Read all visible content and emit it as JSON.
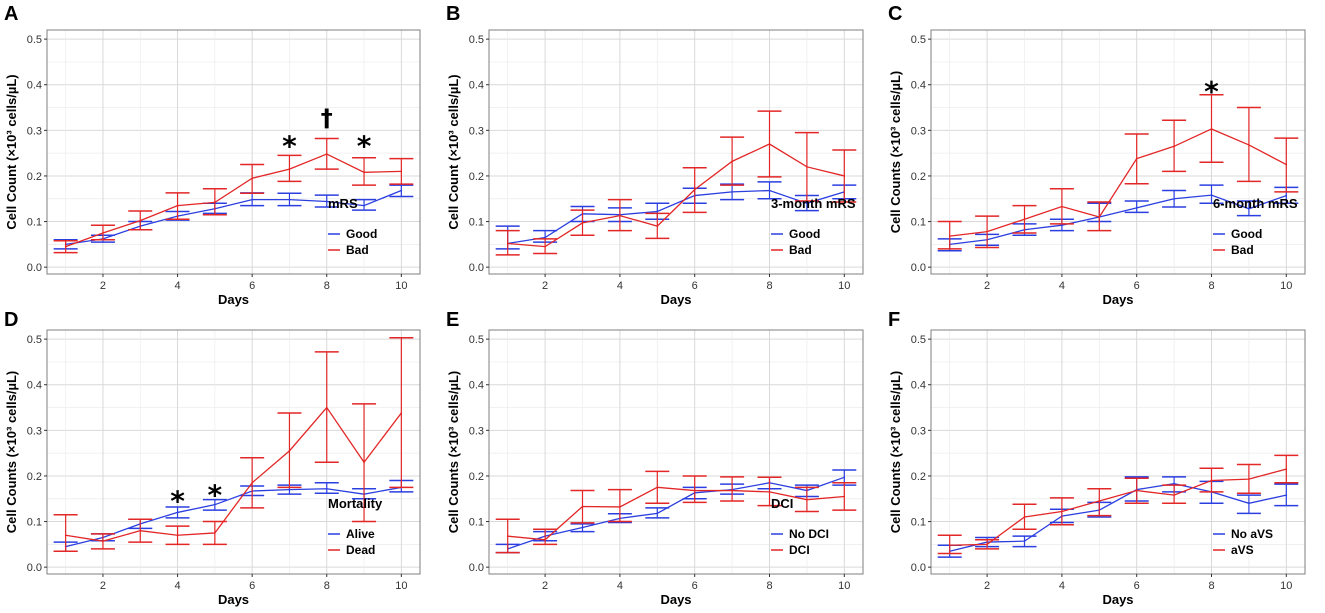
{
  "chart_data": [
    {
      "panel": "A",
      "type": "line",
      "xlabel": "Days",
      "ylabel": "Cell Count (×10³ cells/µL)",
      "x": [
        1,
        2,
        3,
        4,
        5,
        6,
        7,
        8,
        9,
        10
      ],
      "xticks": [
        2,
        4,
        6,
        8,
        10
      ],
      "yticks": [
        0.0,
        0.1,
        0.2,
        0.3,
        0.4,
        0.5
      ],
      "ytick_labels": [
        "0.0",
        "0.1",
        "0.2",
        "0.3",
        "0.4",
        "0.5"
      ],
      "xlim": [
        0.5,
        10.5
      ],
      "ylim": [
        -0.015,
        0.52
      ],
      "legend_title": "mRS",
      "legend_position": "bottom-right",
      "series": [
        {
          "name": "Good",
          "color": "#2b3fe0",
          "mean": [
            0.05,
            0.062,
            0.09,
            0.112,
            0.128,
            0.148,
            0.148,
            0.144,
            0.135,
            0.168
          ],
          "lower": [
            0.04,
            0.055,
            0.082,
            0.103,
            0.118,
            0.135,
            0.135,
            0.132,
            0.125,
            0.155
          ],
          "upper": [
            0.06,
            0.07,
            0.1,
            0.122,
            0.14,
            0.163,
            0.162,
            0.158,
            0.148,
            0.18
          ]
        },
        {
          "name": "Bad",
          "color": "#e32626",
          "mean": [
            0.045,
            0.075,
            0.102,
            0.135,
            0.142,
            0.195,
            0.215,
            0.248,
            0.208,
            0.21
          ],
          "lower": [
            0.032,
            0.06,
            0.082,
            0.105,
            0.115,
            0.162,
            0.188,
            0.215,
            0.18,
            0.182
          ],
          "upper": [
            0.058,
            0.092,
            0.123,
            0.163,
            0.172,
            0.225,
            0.245,
            0.282,
            0.24,
            0.238
          ]
        }
      ],
      "annotations": [
        {
          "x": 7,
          "y": 0.275,
          "text": "*"
        },
        {
          "x": 8,
          "y": 0.318,
          "text": "†"
        },
        {
          "x": 9,
          "y": 0.275,
          "text": "*"
        }
      ]
    },
    {
      "panel": "B",
      "type": "line",
      "xlabel": "Days",
      "ylabel": "Cell Count (×10³ cells/µL)",
      "x": [
        1,
        2,
        3,
        4,
        5,
        6,
        7,
        8,
        9,
        10
      ],
      "xticks": [
        2,
        4,
        6,
        8,
        10
      ],
      "yticks": [
        0.0,
        0.1,
        0.2,
        0.3,
        0.4,
        0.5
      ],
      "ytick_labels": [
        "0.0",
        "0.1",
        "0.2",
        "0.3",
        "0.4",
        "0.5"
      ],
      "xlim": [
        0.5,
        10.5
      ],
      "ylim": [
        -0.015,
        0.52
      ],
      "legend_title": "3-month mRS",
      "legend_position": "bottom-right",
      "series": [
        {
          "name": "Good",
          "color": "#2b3fe0",
          "mean": [
            0.052,
            0.065,
            0.117,
            0.115,
            0.122,
            0.157,
            0.165,
            0.168,
            0.14,
            0.165
          ],
          "lower": [
            0.04,
            0.055,
            0.1,
            0.1,
            0.105,
            0.14,
            0.148,
            0.15,
            0.124,
            0.15
          ],
          "upper": [
            0.09,
            0.08,
            0.133,
            0.13,
            0.14,
            0.173,
            0.182,
            0.187,
            0.157,
            0.18
          ]
        },
        {
          "name": "Bad",
          "color": "#e32626",
          "mean": [
            0.052,
            0.045,
            0.097,
            0.113,
            0.09,
            0.17,
            0.232,
            0.27,
            0.22,
            0.2
          ],
          "lower": [
            0.027,
            0.03,
            0.07,
            0.08,
            0.063,
            0.12,
            0.18,
            0.198,
            0.145,
            0.143
          ],
          "upper": [
            0.08,
            0.062,
            0.125,
            0.148,
            0.118,
            0.218,
            0.285,
            0.342,
            0.295,
            0.257
          ]
        }
      ],
      "annotations": []
    },
    {
      "panel": "C",
      "type": "line",
      "xlabel": "Days",
      "ylabel": "Cell Counts (×10³ cells/µL)",
      "x": [
        1,
        2,
        3,
        4,
        5,
        6,
        7,
        8,
        9,
        10
      ],
      "xticks": [
        2,
        4,
        6,
        8,
        10
      ],
      "yticks": [
        0.0,
        0.1,
        0.2,
        0.3,
        0.4,
        0.5
      ],
      "ytick_labels": [
        "0.0",
        "0.1",
        "0.2",
        "0.3",
        "0.4",
        "0.5"
      ],
      "xlim": [
        0.5,
        10.5
      ],
      "ylim": [
        -0.015,
        0.52
      ],
      "legend_title": "6-month mRS",
      "legend_position": "bottom-right",
      "series": [
        {
          "name": "Good",
          "color": "#2b3fe0",
          "mean": [
            0.05,
            0.06,
            0.082,
            0.092,
            0.11,
            0.13,
            0.15,
            0.158,
            0.128,
            0.157
          ],
          "lower": [
            0.036,
            0.048,
            0.07,
            0.08,
            0.1,
            0.12,
            0.132,
            0.14,
            0.113,
            0.14
          ],
          "upper": [
            0.062,
            0.072,
            0.095,
            0.105,
            0.14,
            0.145,
            0.168,
            0.18,
            0.145,
            0.175
          ]
        },
        {
          "name": "Bad",
          "color": "#e32626",
          "mean": [
            0.068,
            0.078,
            0.105,
            0.133,
            0.11,
            0.238,
            0.265,
            0.303,
            0.268,
            0.225
          ],
          "lower": [
            0.04,
            0.043,
            0.075,
            0.095,
            0.08,
            0.183,
            0.21,
            0.23,
            0.188,
            0.165
          ],
          "upper": [
            0.1,
            0.112,
            0.135,
            0.172,
            0.143,
            0.292,
            0.322,
            0.378,
            0.35,
            0.283
          ]
        }
      ],
      "annotations": [
        {
          "x": 8,
          "y": 0.395,
          "text": "*"
        }
      ]
    },
    {
      "panel": "D",
      "type": "line",
      "xlabel": "Days",
      "ylabel": "Cell Counts (×10³ cells/µL)",
      "x": [
        1,
        2,
        3,
        4,
        5,
        6,
        7,
        8,
        9,
        10
      ],
      "xticks": [
        2,
        4,
        6,
        8,
        10
      ],
      "yticks": [
        0.0,
        0.1,
        0.2,
        0.3,
        0.4,
        0.5
      ],
      "ytick_labels": [
        "0.0",
        "0.1",
        "0.2",
        "0.3",
        "0.4",
        "0.5"
      ],
      "xlim": [
        0.5,
        10.5
      ],
      "ylim": [
        -0.015,
        0.52
      ],
      "legend_title": "Mortality",
      "legend_position": "bottom-right",
      "series": [
        {
          "name": "Alive",
          "color": "#2b3fe0",
          "mean": [
            0.045,
            0.065,
            0.095,
            0.12,
            0.137,
            0.167,
            0.17,
            0.172,
            0.16,
            0.175
          ],
          "lower": [
            0.035,
            0.058,
            0.085,
            0.108,
            0.125,
            0.157,
            0.16,
            0.162,
            0.15,
            0.165
          ],
          "upper": [
            0.055,
            0.073,
            0.105,
            0.132,
            0.148,
            0.178,
            0.18,
            0.185,
            0.172,
            0.19
          ]
        },
        {
          "name": "Dead",
          "color": "#e32626",
          "mean": [
            0.07,
            0.057,
            0.08,
            0.07,
            0.075,
            0.185,
            0.255,
            0.35,
            0.23,
            0.338
          ],
          "lower": [
            0.035,
            0.04,
            0.055,
            0.05,
            0.05,
            0.13,
            0.175,
            0.23,
            0.1,
            0.175
          ],
          "upper": [
            0.115,
            0.073,
            0.105,
            0.09,
            0.1,
            0.24,
            0.338,
            0.472,
            0.358,
            0.503
          ]
        }
      ],
      "annotations": [
        {
          "x": 4,
          "y": 0.155,
          "text": "*"
        },
        {
          "x": 5,
          "y": 0.168,
          "text": "*"
        }
      ]
    },
    {
      "panel": "E",
      "type": "line",
      "xlabel": "Days",
      "ylabel": "Cell Counts (×10³ cells/µL)",
      "x": [
        1,
        2,
        3,
        4,
        5,
        6,
        7,
        8,
        9,
        10
      ],
      "xticks": [
        2,
        4,
        6,
        8,
        10
      ],
      "yticks": [
        0.0,
        0.1,
        0.2,
        0.3,
        0.4,
        0.5
      ],
      "ytick_labels": [
        "0.0",
        "0.1",
        "0.2",
        "0.3",
        "0.4",
        "0.5"
      ],
      "xlim": [
        0.5,
        10.5
      ],
      "ylim": [
        -0.015,
        0.52
      ],
      "legend_title": "DCI",
      "legend_position": "bottom-right",
      "series": [
        {
          "name": "No DCI",
          "color": "#2b3fe0",
          "mean": [
            0.04,
            0.068,
            0.087,
            0.107,
            0.118,
            0.163,
            0.17,
            0.185,
            0.168,
            0.197
          ],
          "lower": [
            0.032,
            0.058,
            0.078,
            0.098,
            0.108,
            0.15,
            0.16,
            0.172,
            0.155,
            0.18
          ],
          "upper": [
            0.05,
            0.078,
            0.095,
            0.117,
            0.13,
            0.175,
            0.182,
            0.197,
            0.18,
            0.213
          ]
        },
        {
          "name": "DCI",
          "color": "#e32626",
          "mean": [
            0.068,
            0.06,
            0.133,
            0.132,
            0.175,
            0.168,
            0.168,
            0.165,
            0.148,
            0.155
          ],
          "lower": [
            0.032,
            0.05,
            0.097,
            0.1,
            0.14,
            0.142,
            0.145,
            0.135,
            0.122,
            0.125
          ],
          "upper": [
            0.105,
            0.083,
            0.168,
            0.17,
            0.21,
            0.2,
            0.198,
            0.197,
            0.175,
            0.185
          ]
        }
      ],
      "annotations": []
    },
    {
      "panel": "F",
      "type": "line",
      "xlabel": "Days",
      "ylabel": "Cell Counts (×10³ cells/µL)",
      "x": [
        1,
        2,
        3,
        4,
        5,
        6,
        7,
        8,
        9,
        10
      ],
      "xticks": [
        2,
        4,
        6,
        8,
        10
      ],
      "yticks": [
        0.0,
        0.1,
        0.2,
        0.3,
        0.4,
        0.5
      ],
      "ytick_labels": [
        "0.0",
        "0.1",
        "0.2",
        "0.3",
        "0.4",
        "0.5"
      ],
      "xlim": [
        0.5,
        10.5
      ],
      "ylim": [
        -0.015,
        0.52
      ],
      "legend_title": "",
      "legend_position": "bottom-right",
      "series": [
        {
          "name": "No aVS",
          "color": "#2b3fe0",
          "mean": [
            0.035,
            0.055,
            0.057,
            0.112,
            0.125,
            0.17,
            0.183,
            0.165,
            0.14,
            0.158
          ],
          "lower": [
            0.022,
            0.045,
            0.045,
            0.098,
            0.11,
            0.145,
            0.165,
            0.14,
            0.118,
            0.135
          ],
          "upper": [
            0.048,
            0.065,
            0.068,
            0.127,
            0.142,
            0.198,
            0.198,
            0.188,
            0.158,
            0.182
          ]
        },
        {
          "name": "aVS",
          "color": "#e32626",
          "mean": [
            0.048,
            0.05,
            0.11,
            0.122,
            0.145,
            0.168,
            0.158,
            0.19,
            0.193,
            0.215
          ],
          "lower": [
            0.03,
            0.04,
            0.083,
            0.093,
            0.113,
            0.14,
            0.14,
            0.165,
            0.162,
            0.185
          ],
          "upper": [
            0.07,
            0.06,
            0.138,
            0.152,
            0.172,
            0.195,
            0.18,
            0.217,
            0.225,
            0.245
          ]
        }
      ],
      "annotations": []
    }
  ],
  "panel_letters": [
    "A",
    "B",
    "C",
    "D",
    "E",
    "F"
  ]
}
